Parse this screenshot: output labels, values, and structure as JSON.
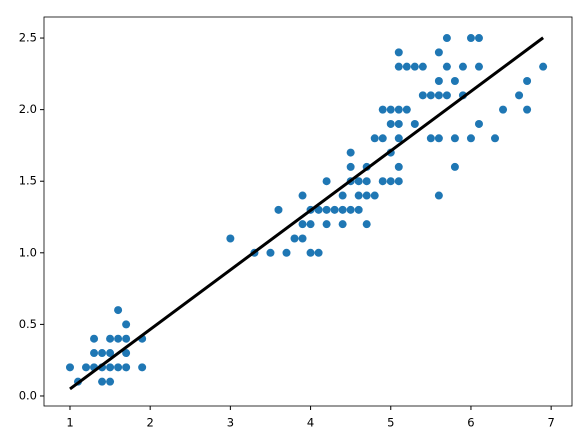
{
  "chart_data": {
    "type": "scatter",
    "xlim": [
      0.676,
      7.26
    ],
    "ylim": [
      -0.07,
      2.647
    ],
    "xticks": [
      1,
      2,
      3,
      4,
      5,
      6,
      7
    ],
    "yticks": [
      {
        "value": 0,
        "label": "0.0"
      },
      0.5,
      {
        "value": 1,
        "label": "1.0"
      },
      1.5,
      {
        "value": 2,
        "label": "2.0"
      },
      2.5
    ],
    "series": [
      {
        "type": "scatter",
        "color": "#1f77b4",
        "x": [
          1.0,
          1.1,
          1.2,
          1.3,
          1.3,
          1.3,
          1.4,
          1.4,
          1.4,
          1.5,
          1.5,
          1.5,
          1.5,
          1.6,
          1.6,
          1.6,
          1.7,
          1.7,
          1.7,
          1.7,
          1.9,
          1.9,
          3.0,
          3.3,
          3.5,
          3.6,
          3.7,
          3.8,
          3.9,
          3.9,
          3.9,
          4.0,
          4.0,
          4.0,
          4.1,
          4.1,
          4.2,
          4.2,
          4.2,
          4.3,
          4.4,
          4.4,
          4.4,
          4.5,
          4.5,
          4.5,
          4.5,
          4.6,
          4.6,
          4.6,
          4.7,
          4.7,
          4.7,
          4.7,
          4.8,
          4.8,
          4.9,
          4.9,
          5.0,
          5.1,
          4.9,
          5.0,
          5.0,
          5.0,
          5.1,
          5.1,
          5.1,
          5.1,
          5.1,
          5.1,
          5.2,
          5.2,
          5.3,
          5.3,
          5.4,
          5.4,
          5.5,
          5.5,
          5.6,
          5.6,
          5.6,
          5.6,
          5.6,
          5.7,
          5.7,
          5.7,
          5.8,
          5.8,
          5.8,
          5.9,
          5.9,
          6.0,
          6.0,
          6.1,
          6.1,
          6.1,
          6.3,
          6.4,
          6.6,
          6.7,
          6.7,
          6.9
        ],
        "values": [
          0.2,
          0.1,
          0.2,
          0.2,
          0.3,
          0.4,
          0.1,
          0.2,
          0.3,
          0.1,
          0.2,
          0.3,
          0.4,
          0.2,
          0.4,
          0.6,
          0.2,
          0.3,
          0.4,
          0.5,
          0.2,
          0.4,
          1.1,
          1.0,
          1.0,
          1.3,
          1.0,
          1.1,
          1.1,
          1.2,
          1.4,
          1.0,
          1.2,
          1.3,
          1.0,
          1.3,
          1.2,
          1.3,
          1.5,
          1.3,
          1.2,
          1.3,
          1.4,
          1.3,
          1.5,
          1.6,
          1.7,
          1.3,
          1.4,
          1.5,
          1.2,
          1.4,
          1.5,
          1.6,
          1.4,
          1.8,
          1.5,
          1.8,
          1.7,
          1.6,
          2.0,
          1.5,
          1.9,
          2.0,
          1.5,
          1.8,
          1.9,
          2.0,
          2.3,
          2.4,
          2.0,
          2.3,
          1.9,
          2.3,
          2.1,
          2.3,
          1.8,
          2.1,
          1.4,
          1.8,
          2.1,
          2.2,
          2.4,
          2.1,
          2.3,
          2.5,
          1.6,
          1.8,
          2.2,
          2.1,
          2.3,
          1.8,
          2.5,
          1.9,
          2.3,
          2.5,
          1.8,
          2.0,
          2.1,
          2.0,
          2.2,
          2.3
        ]
      },
      {
        "type": "line",
        "color": "#000000",
        "x": [
          1.0,
          6.9
        ],
        "values": [
          0.049,
          2.502
        ]
      }
    ]
  }
}
